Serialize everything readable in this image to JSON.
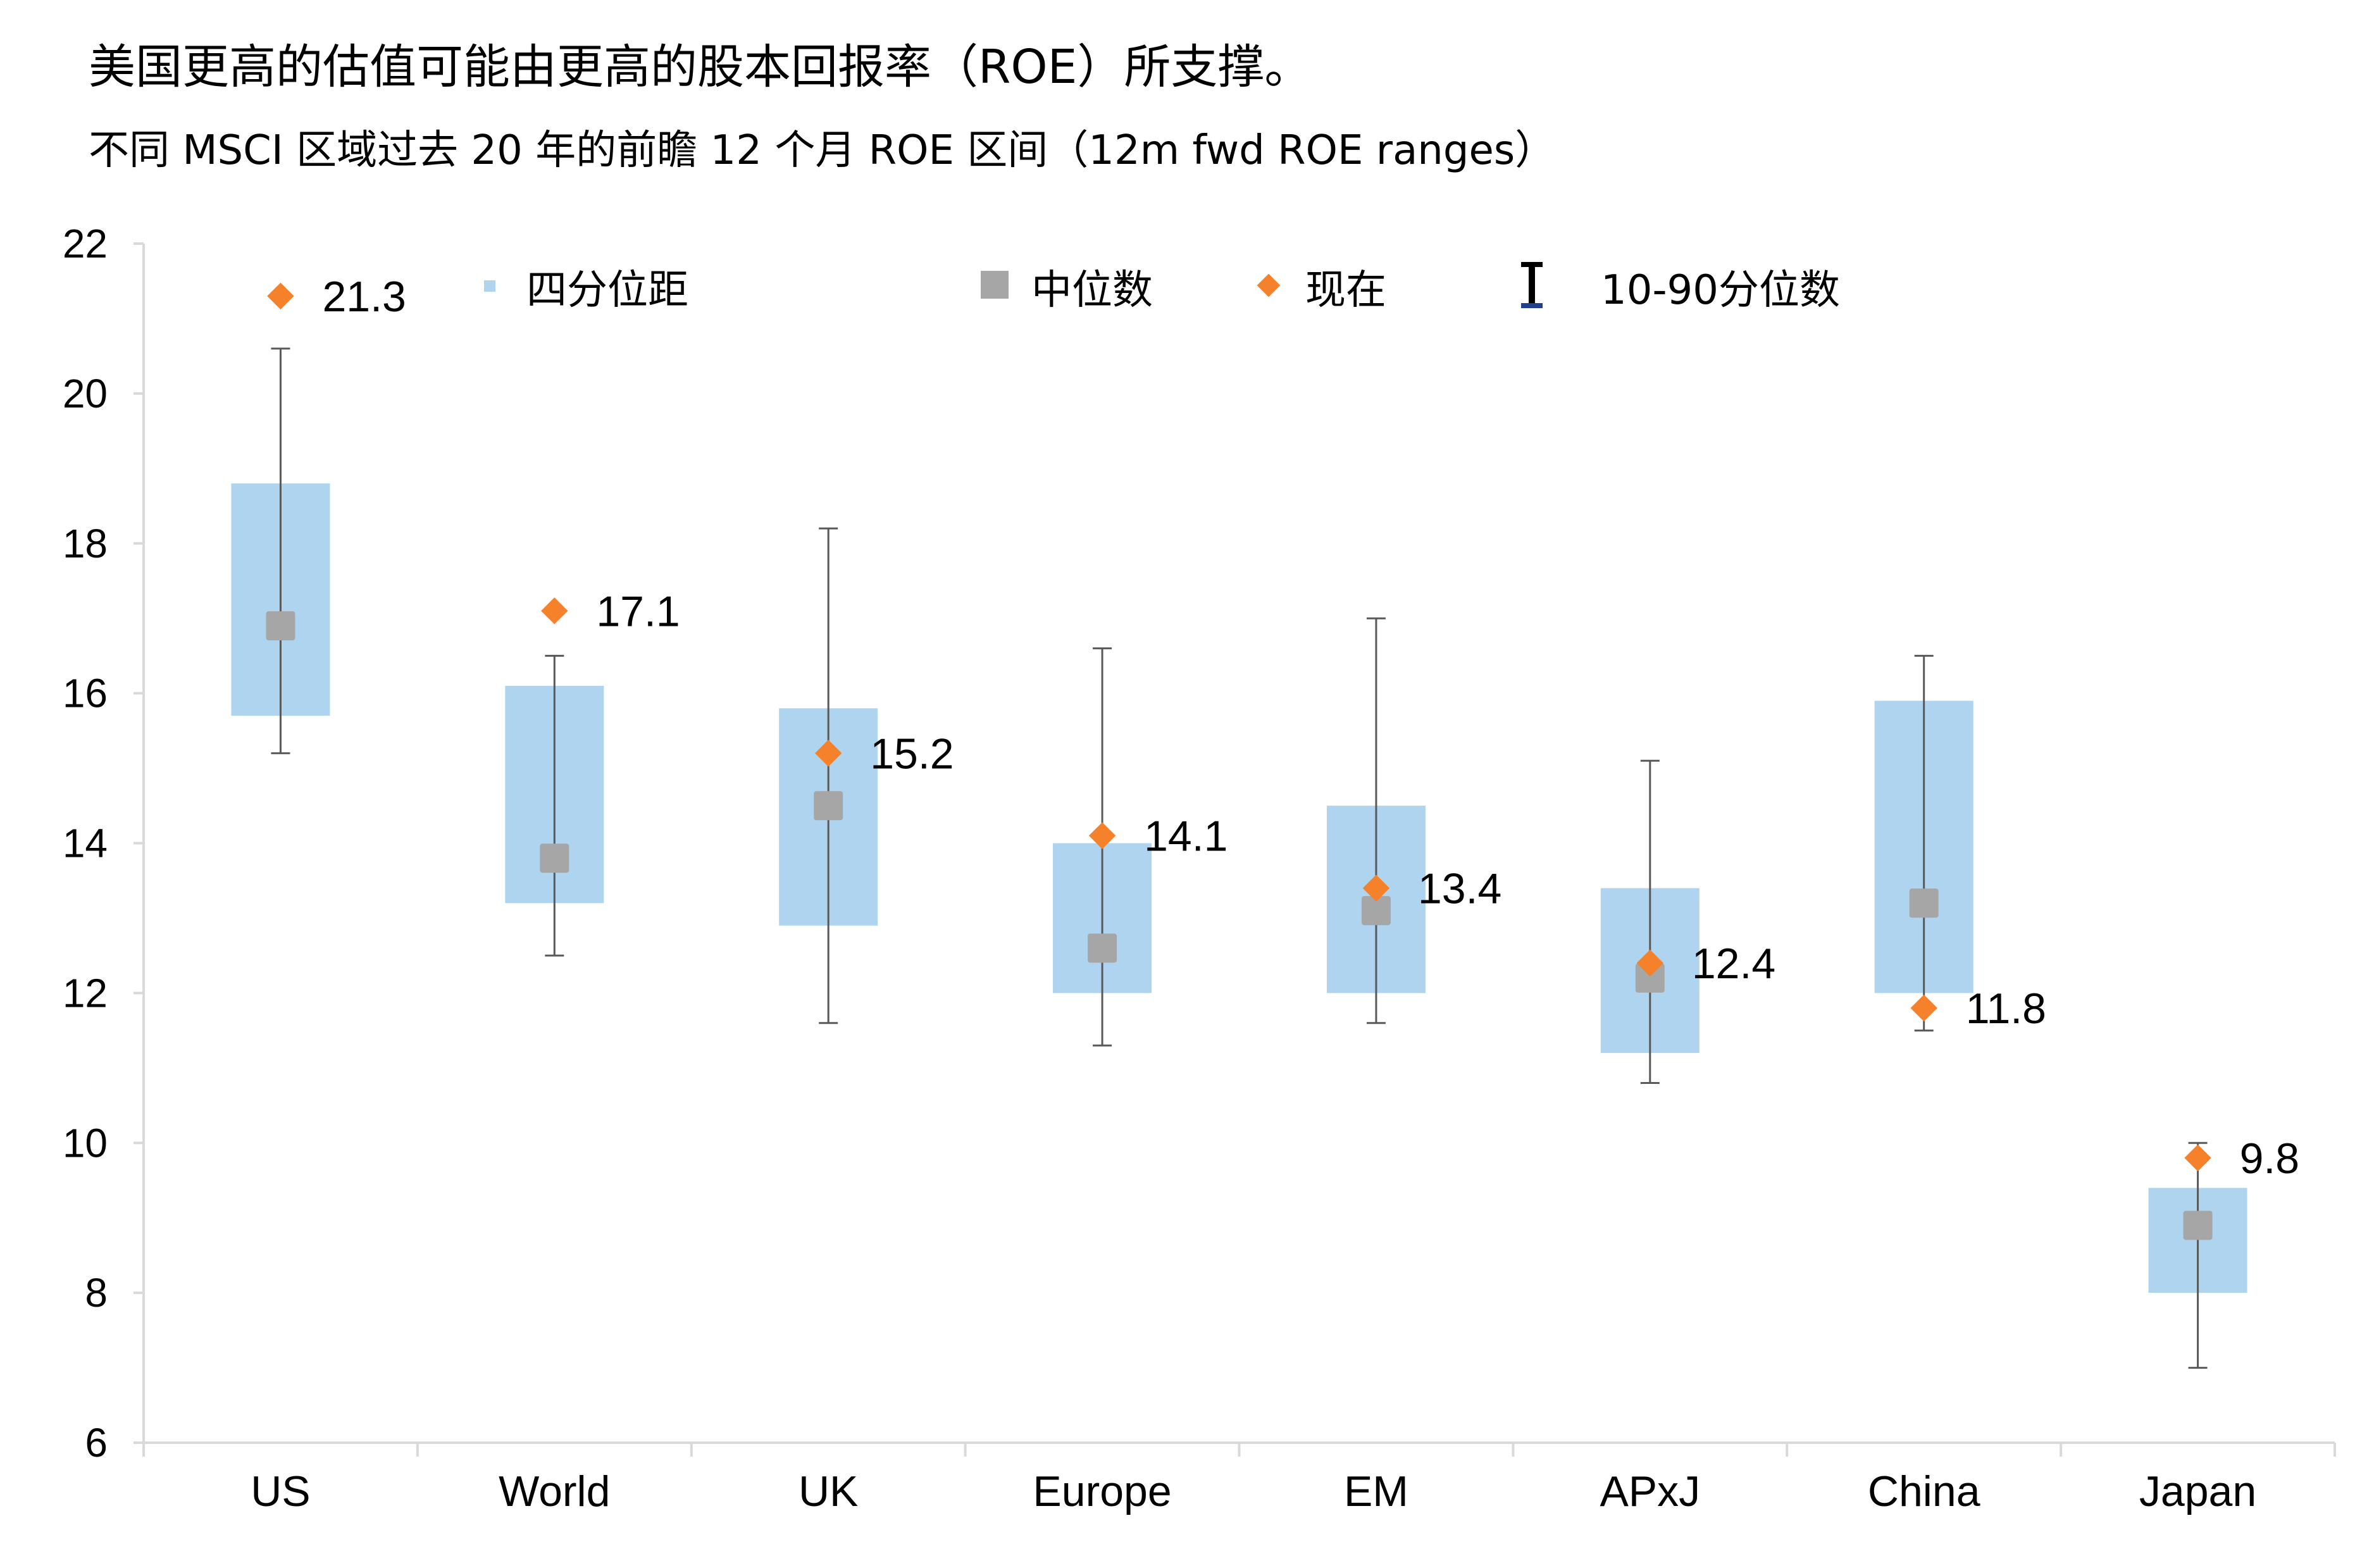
{
  "title": "美国更高的估值可能由更高的股本回报率（ROE）所支撑。",
  "subtitle": "不同 MSCI 区域过去 20 年的前瞻 12 个月 ROE 区间（12m fwd ROE ranges）",
  "colors": {
    "iqr_box": "#aed4ef",
    "median": "#a6a6a6",
    "current": "#f5812b",
    "whisker": "#595959",
    "axis": "#d9d9d9",
    "legend_whisker_icon": "#000000",
    "legend_whisker_underline": "#1f3f8f"
  },
  "legend": {
    "iqr": "四分位距",
    "median": "中位数",
    "current": "现在",
    "range": "10-90分位数"
  },
  "chart_data": {
    "type": "box",
    "ylim": [
      6,
      22
    ],
    "yticks": [
      6,
      8,
      10,
      12,
      14,
      16,
      18,
      20,
      22
    ],
    "categories": [
      "US",
      "World",
      "UK",
      "Europe",
      "EM",
      "APxJ",
      "China",
      "Japan"
    ],
    "series": [
      {
        "name": "四分位距",
        "q1": [
          15.7,
          13.2,
          12.9,
          12.0,
          12.0,
          11.2,
          12.0,
          8.0
        ],
        "q3": [
          18.8,
          16.1,
          15.8,
          14.0,
          14.5,
          13.4,
          15.9,
          9.4
        ]
      },
      {
        "name": "中位数",
        "values": [
          16.9,
          13.8,
          14.5,
          12.6,
          13.1,
          12.2,
          13.2,
          8.9
        ]
      },
      {
        "name": "现在",
        "values": [
          21.3,
          17.1,
          15.2,
          14.1,
          13.4,
          12.4,
          11.8,
          9.8
        ]
      },
      {
        "name": "10-90分位数",
        "p10": [
          15.2,
          12.5,
          11.6,
          11.3,
          11.6,
          10.8,
          11.5,
          7.0
        ],
        "p90": [
          20.6,
          16.5,
          18.2,
          16.6,
          17.0,
          15.1,
          16.5,
          10.0
        ]
      }
    ],
    "value_labels": [
      "21.3",
      "17.1",
      "15.2",
      "14.1",
      "13.4",
      "12.4",
      "11.8",
      "9.8"
    ]
  }
}
